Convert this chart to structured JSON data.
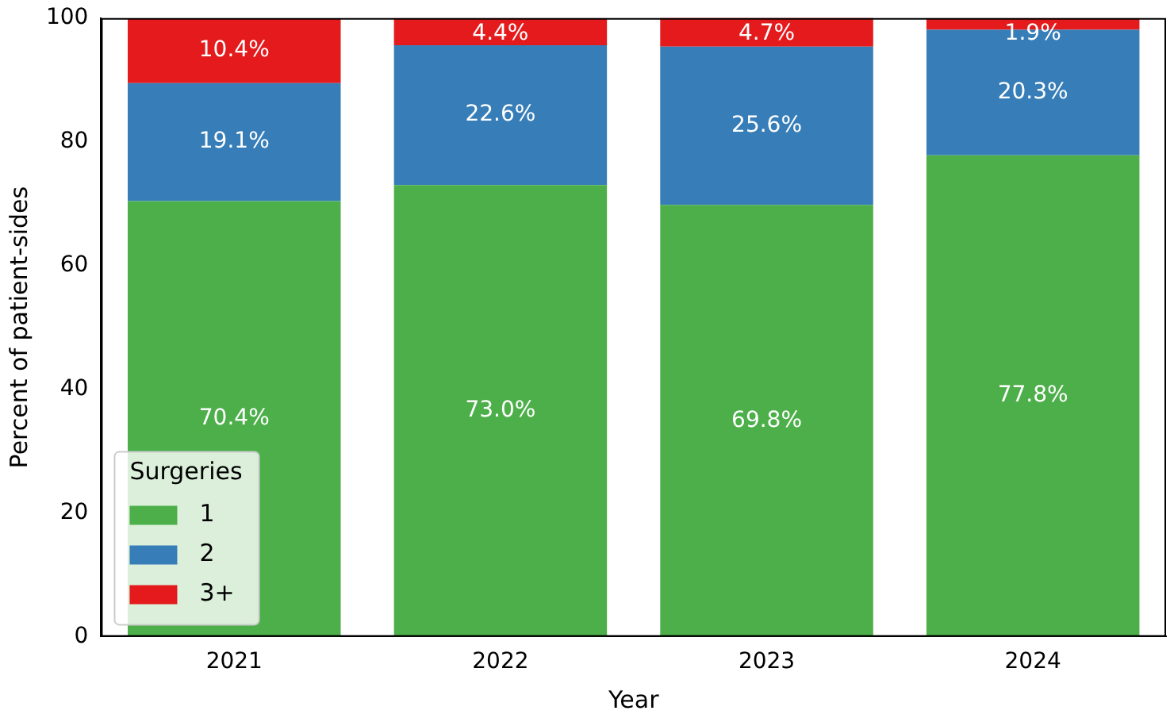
{
  "chart_data": {
    "type": "bar",
    "stacked": true,
    "xlabel": "Year",
    "ylabel": "Percent of patient-sides",
    "legend_title": "Surgeries",
    "legend": "bottom left",
    "grid": false,
    "categories": [
      "2021",
      "2022",
      "2023",
      "2024"
    ],
    "ylim": [
      0,
      100
    ],
    "yticks": [
      0,
      20,
      40,
      60,
      80,
      100
    ],
    "series": [
      {
        "name": "1",
        "color": "#4daf4a",
        "values": [
          70.4,
          73.0,
          69.8,
          77.8
        ],
        "value_labels": [
          "70.4%",
          "73.0%",
          "69.8%",
          "77.8%"
        ]
      },
      {
        "name": "2",
        "color": "#377eb8",
        "values": [
          19.1,
          22.6,
          25.6,
          20.3
        ],
        "value_labels": [
          "19.1%",
          "22.6%",
          "25.6%",
          "20.3%"
        ]
      },
      {
        "name": "3+",
        "color": "#e41a1c",
        "values": [
          10.4,
          4.4,
          4.7,
          1.9
        ],
        "value_labels": [
          "10.4%",
          "4.4%",
          "4.7%",
          "1.9%"
        ]
      }
    ]
  }
}
